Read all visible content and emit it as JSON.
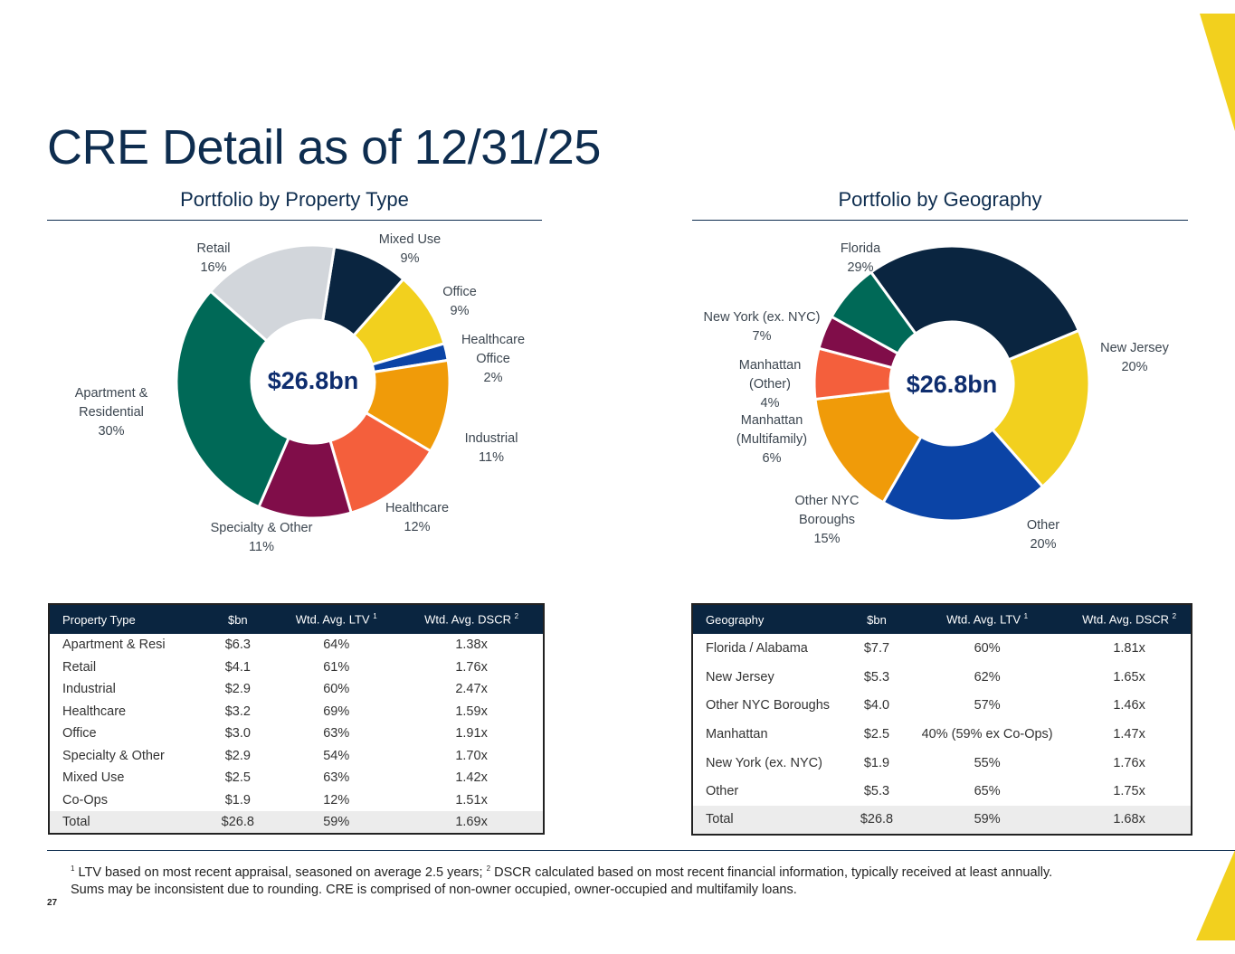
{
  "title": "CRE Detail as of 12/31/25",
  "colors": {
    "navy": "#0a2540",
    "yellow": "#f2d01e",
    "blue": "#0b44a6",
    "orange": "#f09b09",
    "red": "#f45f3c",
    "maroon": "#800d49",
    "teal": "#006957",
    "gray": "#d2d6db"
  },
  "chart_data": [
    {
      "type": "pie",
      "title": "Portfolio by Property Type",
      "center_label": "$26.8bn",
      "slices": [
        {
          "label": "Mixed Use",
          "pct": "9%",
          "value": 9,
          "color": "#0a2540"
        },
        {
          "label": "Office",
          "pct": "9%",
          "value": 9,
          "color": "#f2d01e"
        },
        {
          "label": "Healthcare Office",
          "pct": "2%",
          "value": 2,
          "color": "#0b44a6"
        },
        {
          "label": "Industrial",
          "pct": "11%",
          "value": 11,
          "color": "#f09b09"
        },
        {
          "label": "Healthcare",
          "pct": "12%",
          "value": 12,
          "color": "#f45f3c"
        },
        {
          "label": "Specialty & Other",
          "pct": "11%",
          "value": 11,
          "color": "#800d49"
        },
        {
          "label": "Apartment & Residential",
          "pct": "30%",
          "value": 30,
          "color": "#006957"
        },
        {
          "label": "Retail",
          "pct": "16%",
          "value": 16,
          "color": "#d2d6db"
        }
      ]
    },
    {
      "type": "pie",
      "title": "Portfolio by Geography",
      "center_label": "$26.8bn",
      "slices": [
        {
          "label": "Florida",
          "pct": "29%",
          "value": 29,
          "color": "#0a2540"
        },
        {
          "label": "New Jersey",
          "pct": "20%",
          "value": 20,
          "color": "#f2d01e"
        },
        {
          "label": "Other",
          "pct": "20%",
          "value": 20,
          "color": "#0b44a6"
        },
        {
          "label": "Other NYC Boroughs",
          "pct": "15%",
          "value": 15,
          "color": "#f09b09"
        },
        {
          "label": "Manhattan (Multifamily)",
          "pct": "6%",
          "value": 6,
          "color": "#f45f3c"
        },
        {
          "label": "Manhattan (Other)",
          "pct": "4%",
          "value": 4,
          "color": "#800d49"
        },
        {
          "label": "New York (ex. NYC)",
          "pct": "7%",
          "value": 7,
          "color": "#006957"
        }
      ]
    }
  ],
  "property_chart": {
    "title": "Portfolio by Property Type",
    "labels": [
      [
        "Mixed Use",
        "9%"
      ],
      [
        "Office",
        "9%"
      ],
      [
        "Healthcare",
        "Office",
        "2%"
      ],
      [
        "Industrial",
        "11%"
      ],
      [
        "Healthcare",
        "12%"
      ],
      [
        "Specialty & Other",
        "11%"
      ],
      [
        "Apartment &",
        "Residential",
        "30%"
      ],
      [
        "Retail",
        "16%"
      ]
    ]
  },
  "geo_chart": {
    "title": "Portfolio by Geography",
    "labels": [
      [
        "Florida",
        "29%"
      ],
      [
        "New Jersey",
        "20%"
      ],
      [
        "Other",
        "20%"
      ],
      [
        "Other NYC",
        "Boroughs",
        "15%"
      ],
      [
        "Manhattan",
        "(Multifamily)",
        "6%"
      ],
      [
        "Manhattan",
        "(Other)",
        "4%"
      ],
      [
        "New York (ex. NYC)",
        "7%"
      ]
    ]
  },
  "property_table": {
    "headers": [
      "Property Type",
      "$bn",
      "Wtd. Avg. LTV",
      "Wtd. Avg. DSCR"
    ],
    "sup1": "1",
    "sup2": "2",
    "rows": [
      [
        "Apartment & Resi",
        "$6.3",
        "64%",
        "1.38x"
      ],
      [
        "Retail",
        "$4.1",
        "61%",
        "1.76x"
      ],
      [
        "Industrial",
        "$2.9",
        "60%",
        "2.47x"
      ],
      [
        "Healthcare",
        "$3.2",
        "69%",
        "1.59x"
      ],
      [
        "Office",
        "$3.0",
        "63%",
        "1.91x"
      ],
      [
        "Specialty & Other",
        "$2.9",
        "54%",
        "1.70x"
      ],
      [
        "Mixed Use",
        "$2.5",
        "63%",
        "1.42x"
      ],
      [
        "Co-Ops",
        "$1.9",
        "12%",
        "1.51x"
      ]
    ],
    "total": [
      "Total",
      "$26.8",
      "59%",
      "1.69x"
    ]
  },
  "geo_table": {
    "headers": [
      "Geography",
      "$bn",
      "Wtd. Avg. LTV",
      "Wtd. Avg. DSCR"
    ],
    "sup1": "1",
    "sup2": "2",
    "rows": [
      [
        "Florida / Alabama",
        "$7.7",
        "60%",
        "1.81x"
      ],
      [
        "New Jersey",
        "$5.3",
        "62%",
        "1.65x"
      ],
      [
        "Other NYC Boroughs",
        "$4.0",
        "57%",
        "1.46x"
      ],
      [
        "Manhattan",
        "$2.5",
        "40% (59% ex Co-Ops)",
        "1.47x"
      ],
      [
        "New York (ex. NYC)",
        "$1.9",
        "55%",
        "1.76x"
      ],
      [
        "Other",
        "$5.3",
        "65%",
        "1.75x"
      ]
    ],
    "total": [
      "Total",
      "$26.8",
      "59%",
      "1.68x"
    ]
  },
  "footnote": {
    "sup1": "1",
    "line1a": " LTV based on most recent appraisal, seasoned on average 2.5 years;  ",
    "sup2": "2",
    "line1b": " DSCR calculated based on most recent financial information, typically received at least annually.",
    "line2": "Sums may be inconsistent due to rounding.  CRE is comprised of non-owner occupied, owner-occupied and multifamily loans."
  },
  "page_number": "27"
}
